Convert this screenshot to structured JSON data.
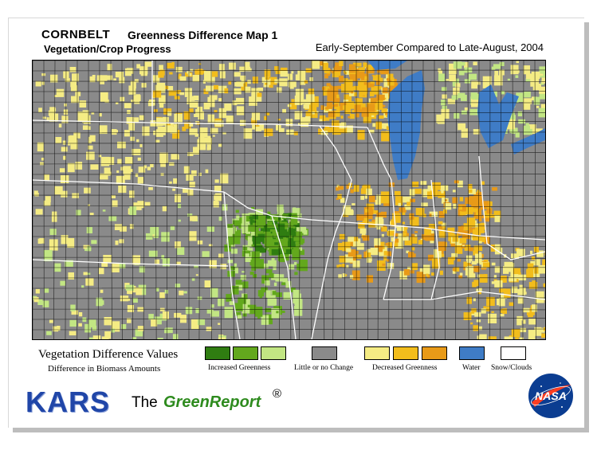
{
  "header": {
    "region": "CORNBELT",
    "map_title": "Greenness Difference Map 1",
    "subtitle": "Vegetation/Crop Progress",
    "period": "Early-September Compared to Late-August, 2004"
  },
  "legend": {
    "title": "Vegetation Difference Values",
    "subtitle": "Difference in Biomass Amounts",
    "classes": [
      {
        "label": "Increased Greenness",
        "colors": [
          "#2f7d11",
          "#63a81d",
          "#c2e683"
        ]
      },
      {
        "label": "Little or no Change",
        "colors": [
          "#8a8a8a"
        ]
      },
      {
        "label": "Decreased Greenness",
        "colors": [
          "#f5ec84",
          "#f2bd1c",
          "#e89a18"
        ]
      },
      {
        "label": "Water",
        "colors": [
          "#3f7cc6"
        ]
      },
      {
        "label": "Snow/Clouds",
        "colors": [
          "#ffffff"
        ]
      }
    ]
  },
  "footer": {
    "brand": "KARS",
    "the": "The",
    "report": "GreenReport",
    "registered": "®",
    "agency_logo": "NASA"
  }
}
